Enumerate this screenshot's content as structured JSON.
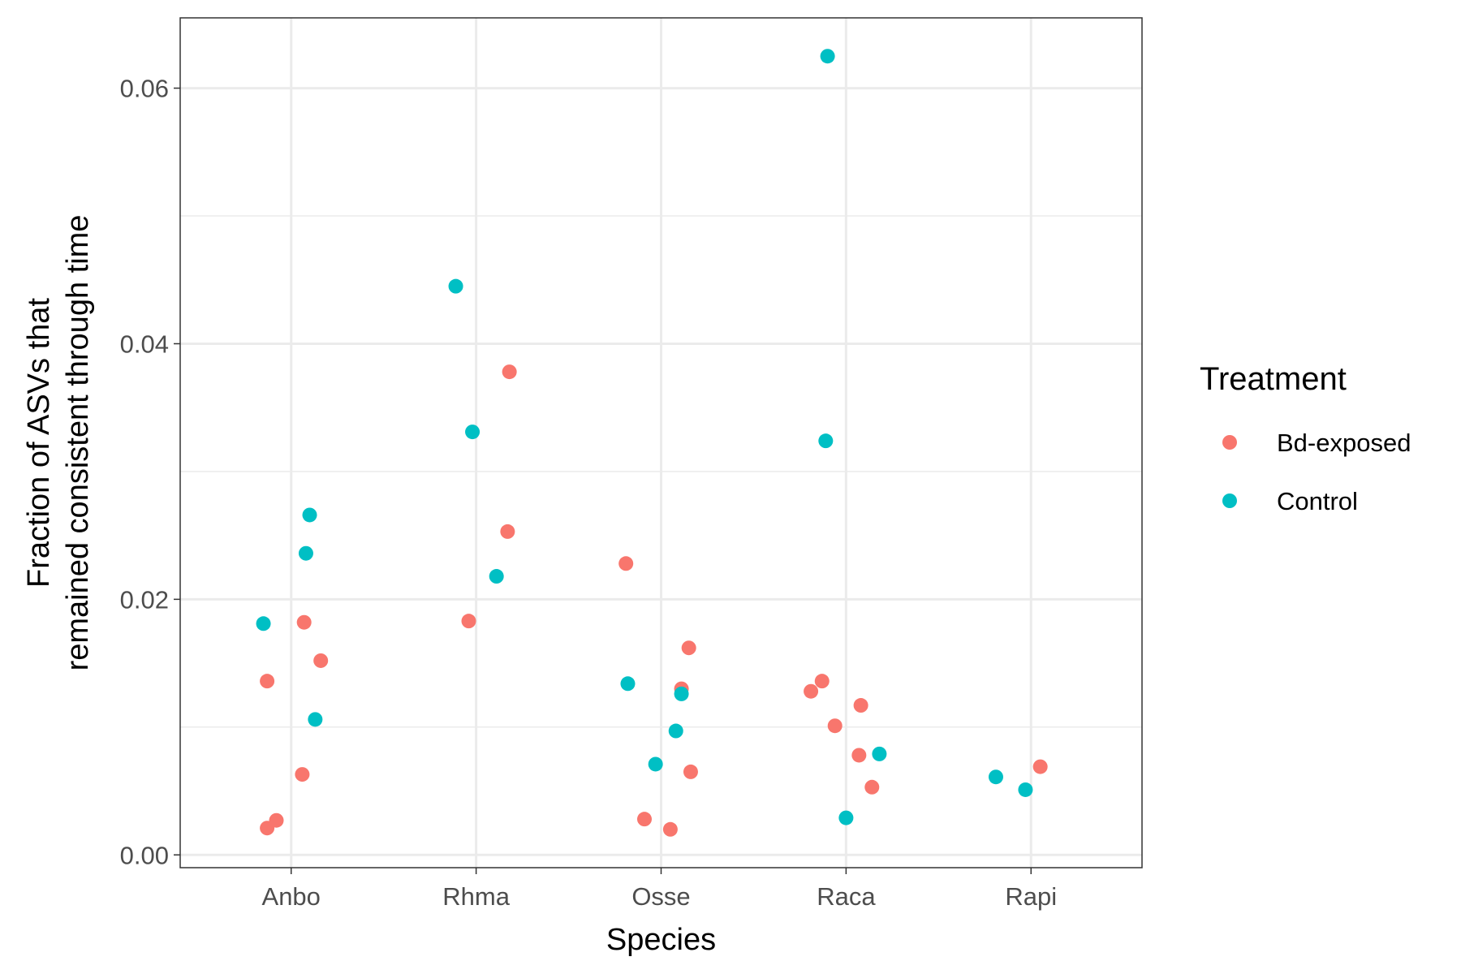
{
  "chart_data": {
    "type": "scatter",
    "title": "",
    "xlabel": "Species",
    "ylabel_lines": [
      "Fraction of ASVs that",
      "remained consistent through time"
    ],
    "categories": [
      "Anbo",
      "Rhma",
      "Osse",
      "Raca",
      "Rapi"
    ],
    "ylim": [
      -0.001,
      0.0655
    ],
    "y_ticks": [
      0.0,
      0.02,
      0.04,
      0.06
    ],
    "y_tick_labels": [
      "0.00",
      "0.02",
      "0.04",
      "0.06"
    ],
    "grid": true,
    "legend": {
      "title": "Treatment",
      "placement": "right"
    },
    "series": [
      {
        "name": "Bd-exposed",
        "color": "#F8766D",
        "points": [
          {
            "x": 0.87,
            "y": 0.0136
          },
          {
            "x": 1.07,
            "y": 0.0182
          },
          {
            "x": 1.16,
            "y": 0.0152
          },
          {
            "x": 1.06,
            "y": 0.0063
          },
          {
            "x": 0.87,
            "y": 0.0021
          },
          {
            "x": 0.92,
            "y": 0.0027
          },
          {
            "x": 1.96,
            "y": 0.0183
          },
          {
            "x": 2.18,
            "y": 0.0378
          },
          {
            "x": 2.17,
            "y": 0.0253
          },
          {
            "x": 2.81,
            "y": 0.0228
          },
          {
            "x": 3.15,
            "y": 0.0162
          },
          {
            "x": 3.11,
            "y": 0.013
          },
          {
            "x": 3.16,
            "y": 0.0065
          },
          {
            "x": 2.91,
            "y": 0.0028
          },
          {
            "x": 3.05,
            "y": 0.002
          },
          {
            "x": 3.81,
            "y": 0.0128
          },
          {
            "x": 3.87,
            "y": 0.0136
          },
          {
            "x": 3.94,
            "y": 0.0101
          },
          {
            "x": 4.08,
            "y": 0.0117
          },
          {
            "x": 4.07,
            "y": 0.0078
          },
          {
            "x": 4.14,
            "y": 0.0053
          },
          {
            "x": 5.05,
            "y": 0.0069
          }
        ]
      },
      {
        "name": "Control",
        "color": "#00BFC4",
        "points": [
          {
            "x": 0.85,
            "y": 0.0181
          },
          {
            "x": 1.1,
            "y": 0.0266
          },
          {
            "x": 1.08,
            "y": 0.0236
          },
          {
            "x": 1.13,
            "y": 0.0106
          },
          {
            "x": 1.89,
            "y": 0.0445
          },
          {
            "x": 1.98,
            "y": 0.0331
          },
          {
            "x": 2.11,
            "y": 0.0218
          },
          {
            "x": 2.82,
            "y": 0.0134
          },
          {
            "x": 3.11,
            "y": 0.0126
          },
          {
            "x": 3.08,
            "y": 0.0097
          },
          {
            "x": 2.97,
            "y": 0.0071
          },
          {
            "x": 3.9,
            "y": 0.0625
          },
          {
            "x": 3.89,
            "y": 0.0324
          },
          {
            "x": 4.18,
            "y": 0.0079
          },
          {
            "x": 4.0,
            "y": 0.0029
          },
          {
            "x": 4.81,
            "y": 0.0061
          },
          {
            "x": 4.97,
            "y": 0.0051
          }
        ]
      }
    ]
  }
}
